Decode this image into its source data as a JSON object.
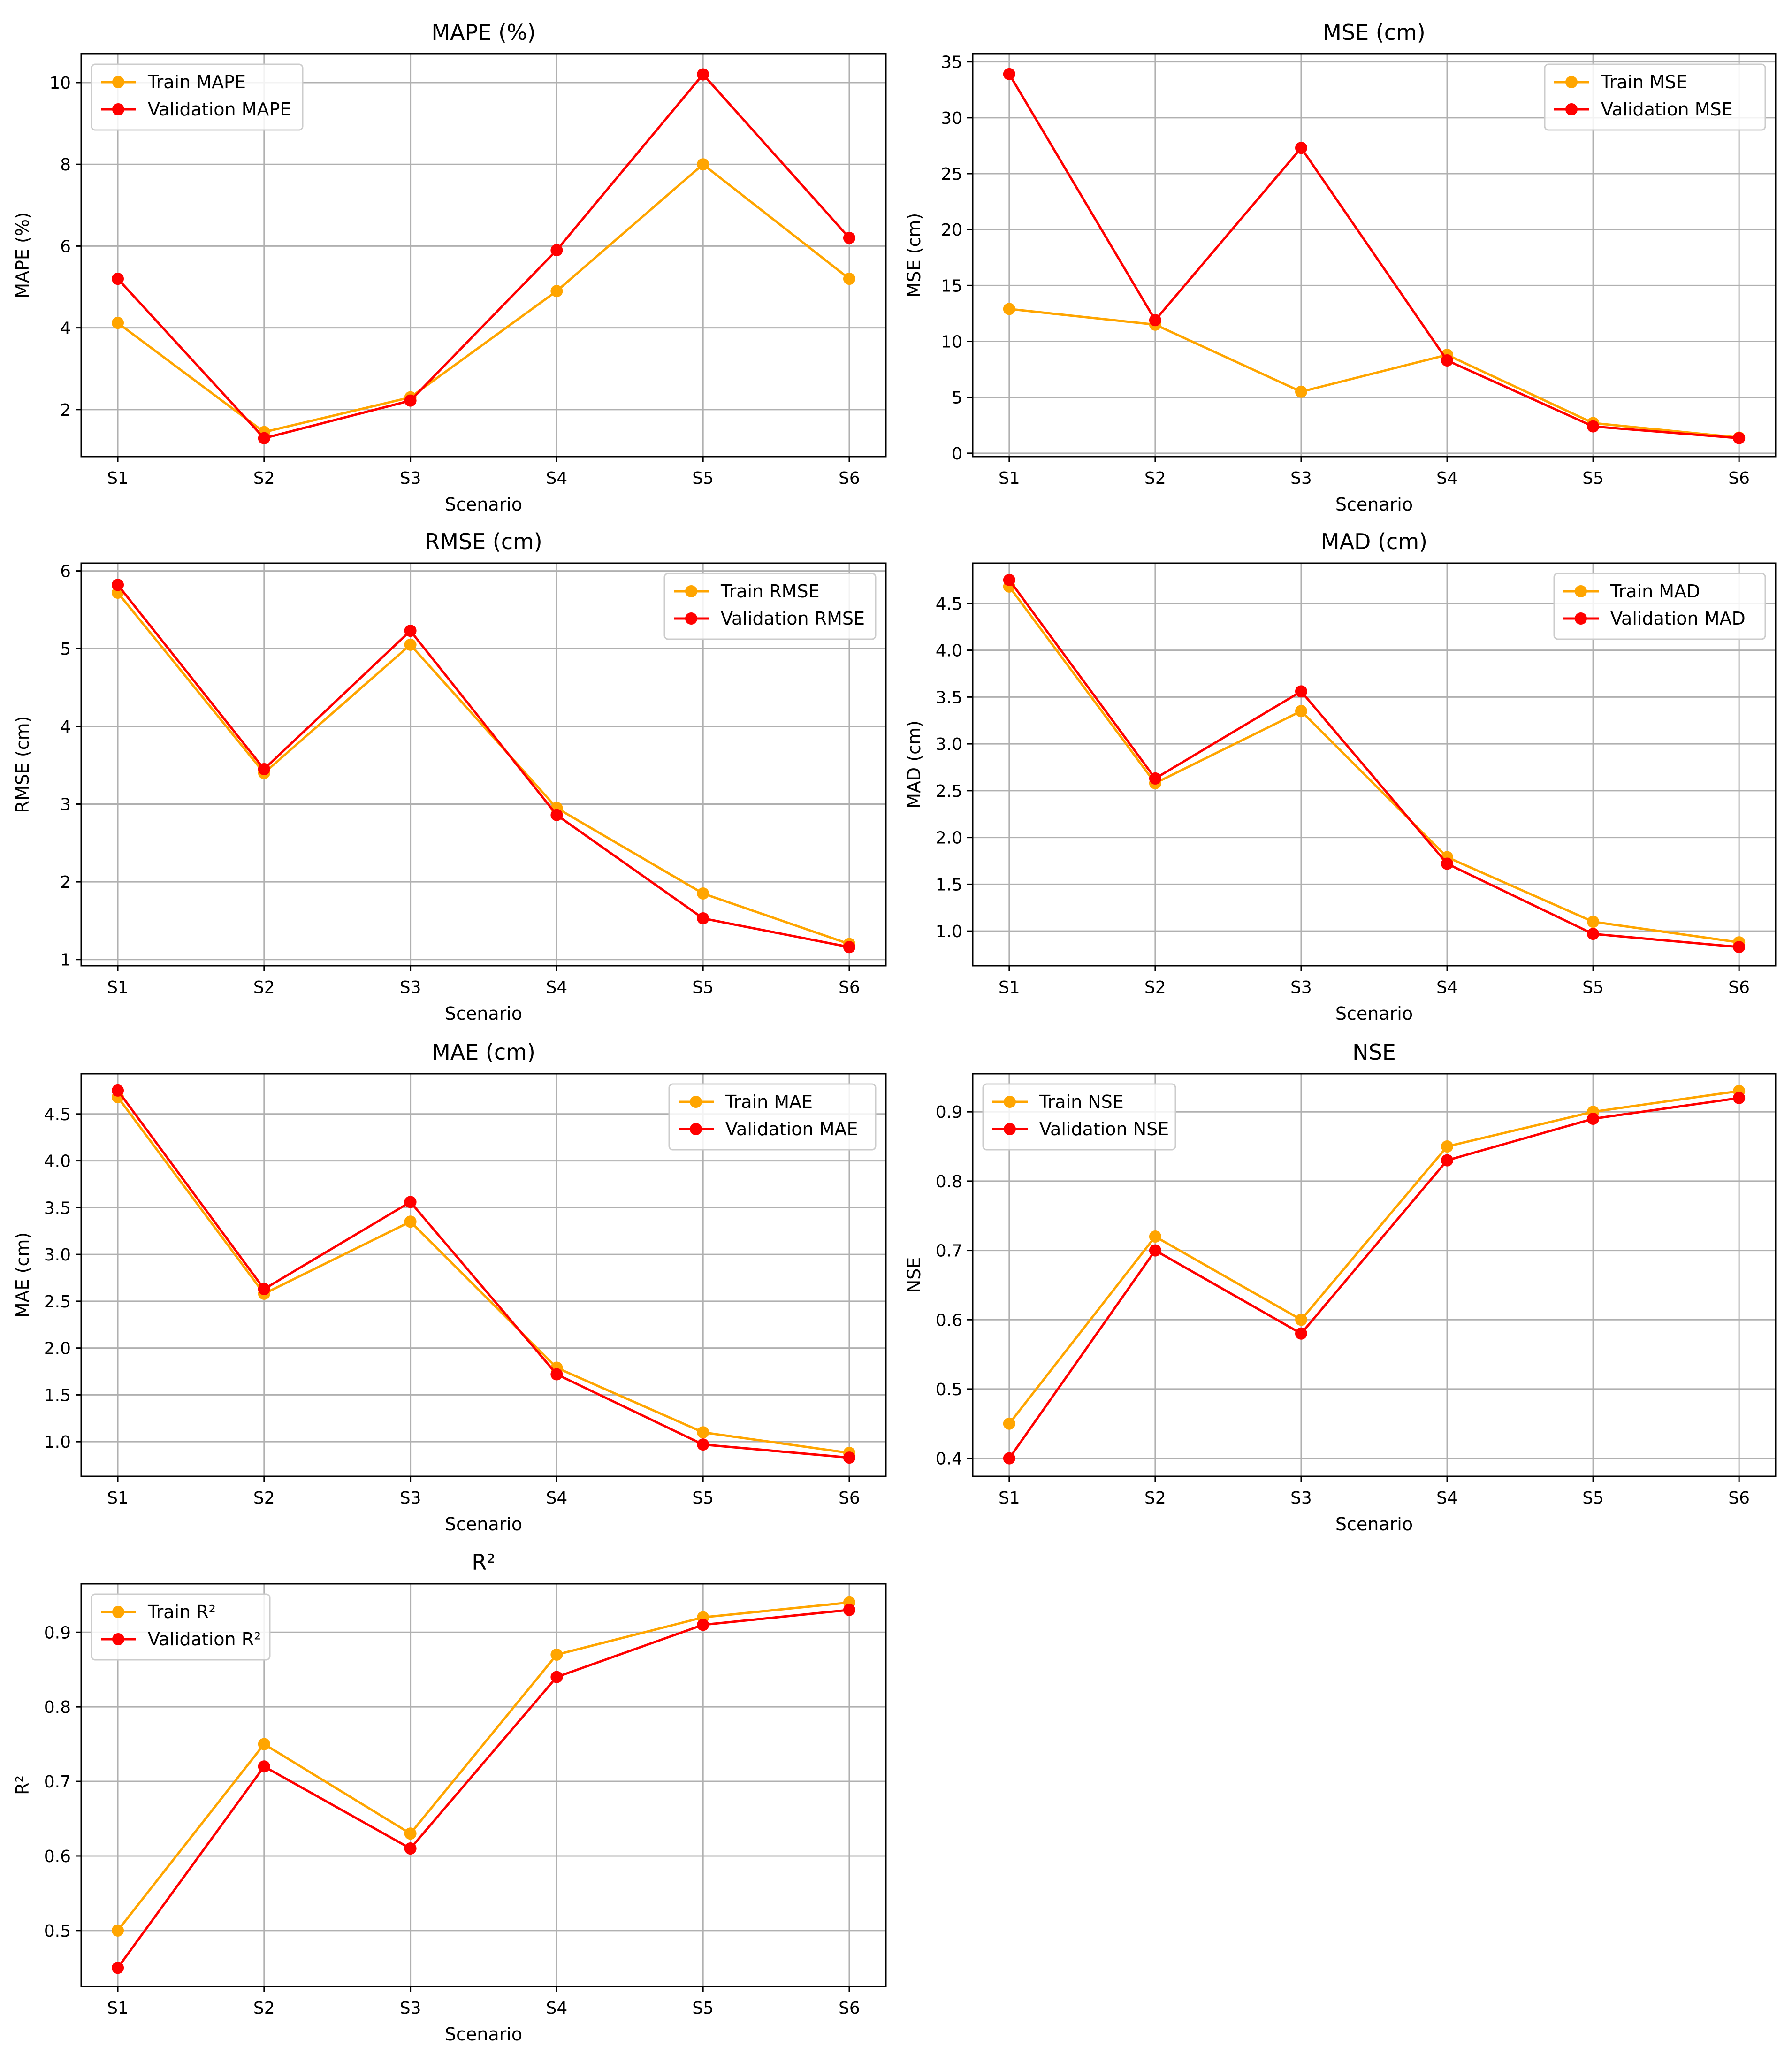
{
  "figure": {
    "background": "#ffffff"
  },
  "colors": {
    "train": "#FFA500",
    "validation": "#FF0000",
    "grid": "#b0b0b0",
    "axis": "#000000",
    "legend_border": "#cccccc"
  },
  "chart_data": [
    {
      "type": "line",
      "title": "MAPE (%)",
      "xlabel": "Scenario",
      "ylabel": "MAPE (%)",
      "categories": [
        "S1",
        "S2",
        "S3",
        "S4",
        "S5",
        "S6"
      ],
      "ylim": [
        0.85,
        10.7
      ],
      "yticks": [
        2,
        4,
        6,
        8,
        10
      ],
      "ytick_labels": [
        "2",
        "4",
        "6",
        "8",
        "10"
      ],
      "grid": true,
      "legend": "upper-left",
      "series": [
        {
          "name": "Train MAPE",
          "color": "#FFA500",
          "values": [
            4.12,
            1.45,
            2.3,
            4.9,
            8.0,
            5.2
          ]
        },
        {
          "name": "Validation MAPE",
          "color": "#FF0000",
          "values": [
            5.2,
            1.3,
            2.22,
            5.9,
            10.2,
            6.2
          ]
        }
      ]
    },
    {
      "type": "line",
      "title": "MSE (cm)",
      "xlabel": "Scenario",
      "ylabel": "MSE (cm)",
      "categories": [
        "S1",
        "S2",
        "S3",
        "S4",
        "S5",
        "S6"
      ],
      "ylim": [
        -0.3,
        35.7
      ],
      "yticks": [
        0,
        5,
        10,
        15,
        20,
        25,
        30,
        35
      ],
      "ytick_labels": [
        "0",
        "5",
        "10",
        "15",
        "20",
        "25",
        "30",
        "35"
      ],
      "grid": true,
      "legend": "upper-right",
      "series": [
        {
          "name": "Train MSE",
          "color": "#FFA500",
          "values": [
            12.9,
            11.5,
            5.5,
            8.8,
            2.7,
            1.4
          ]
        },
        {
          "name": "Validation MSE",
          "color": "#FF0000",
          "values": [
            33.9,
            11.9,
            27.3,
            8.3,
            2.4,
            1.35
          ]
        }
      ]
    },
    {
      "type": "line",
      "title": "RMSE (cm)",
      "xlabel": "Scenario",
      "ylabel": "RMSE (cm)",
      "categories": [
        "S1",
        "S2",
        "S3",
        "S4",
        "S5",
        "S6"
      ],
      "ylim": [
        0.92,
        6.1
      ],
      "yticks": [
        1,
        2,
        3,
        4,
        5,
        6
      ],
      "ytick_labels": [
        "1",
        "2",
        "3",
        "4",
        "5",
        "6"
      ],
      "grid": true,
      "legend": "upper-right",
      "series": [
        {
          "name": "Train RMSE",
          "color": "#FFA500",
          "values": [
            5.72,
            3.4,
            5.05,
            2.95,
            1.85,
            1.2
          ]
        },
        {
          "name": "Validation RMSE",
          "color": "#FF0000",
          "values": [
            5.82,
            3.45,
            5.23,
            2.86,
            1.53,
            1.16
          ]
        }
      ]
    },
    {
      "type": "line",
      "title": "MAD (cm)",
      "xlabel": "Scenario",
      "ylabel": "MAD (cm)",
      "categories": [
        "S1",
        "S2",
        "S3",
        "S4",
        "S5",
        "S6"
      ],
      "ylim": [
        0.63,
        4.93
      ],
      "yticks": [
        1.0,
        1.5,
        2.0,
        2.5,
        3.0,
        3.5,
        4.0,
        4.5
      ],
      "ytick_labels": [
        "1.0",
        "1.5",
        "2.0",
        "2.5",
        "3.0",
        "3.5",
        "4.0",
        "4.5"
      ],
      "grid": true,
      "legend": "upper-right",
      "series": [
        {
          "name": "Train MAD",
          "color": "#FFA500",
          "values": [
            4.68,
            2.58,
            3.35,
            1.79,
            1.1,
            0.88
          ]
        },
        {
          "name": "Validation MAD",
          "color": "#FF0000",
          "values": [
            4.75,
            2.63,
            3.56,
            1.72,
            0.97,
            0.83
          ]
        }
      ]
    },
    {
      "type": "line",
      "title": "MAE (cm)",
      "xlabel": "Scenario",
      "ylabel": "MAE (cm)",
      "categories": [
        "S1",
        "S2",
        "S3",
        "S4",
        "S5",
        "S6"
      ],
      "ylim": [
        0.63,
        4.93
      ],
      "yticks": [
        1.0,
        1.5,
        2.0,
        2.5,
        3.0,
        3.5,
        4.0,
        4.5
      ],
      "ytick_labels": [
        "1.0",
        "1.5",
        "2.0",
        "2.5",
        "3.0",
        "3.5",
        "4.0",
        "4.5"
      ],
      "grid": true,
      "legend": "upper-right",
      "series": [
        {
          "name": "Train MAE",
          "color": "#FFA500",
          "values": [
            4.68,
            2.58,
            3.35,
            1.79,
            1.1,
            0.88
          ]
        },
        {
          "name": "Validation MAE",
          "color": "#FF0000",
          "values": [
            4.75,
            2.63,
            3.56,
            1.72,
            0.97,
            0.83
          ]
        }
      ]
    },
    {
      "type": "line",
      "title": "NSE",
      "xlabel": "Scenario",
      "ylabel": "NSE",
      "categories": [
        "S1",
        "S2",
        "S3",
        "S4",
        "S5",
        "S6"
      ],
      "ylim": [
        0.374,
        0.955
      ],
      "yticks": [
        0.4,
        0.5,
        0.6,
        0.7,
        0.8,
        0.9
      ],
      "ytick_labels": [
        "0.4",
        "0.5",
        "0.6",
        "0.7",
        "0.8",
        "0.9"
      ],
      "grid": true,
      "legend": "upper-left",
      "series": [
        {
          "name": "Train NSE",
          "color": "#FFA500",
          "values": [
            0.45,
            0.72,
            0.6,
            0.85,
            0.9,
            0.93
          ]
        },
        {
          "name": "Validation NSE",
          "color": "#FF0000",
          "values": [
            0.4,
            0.7,
            0.58,
            0.83,
            0.89,
            0.92
          ]
        }
      ]
    },
    {
      "type": "line",
      "title": "R²",
      "xlabel": "Scenario",
      "ylabel": "R²",
      "categories": [
        "S1",
        "S2",
        "S3",
        "S4",
        "S5",
        "S6"
      ],
      "ylim": [
        0.425,
        0.965
      ],
      "yticks": [
        0.5,
        0.6,
        0.7,
        0.8,
        0.9
      ],
      "ytick_labels": [
        "0.5",
        "0.6",
        "0.7",
        "0.8",
        "0.9"
      ],
      "grid": true,
      "legend": "upper-left",
      "series": [
        {
          "name": "Train R²",
          "color": "#FFA500",
          "values": [
            0.5,
            0.75,
            0.63,
            0.87,
            0.92,
            0.94
          ]
        },
        {
          "name": "Validation R²",
          "color": "#FF0000",
          "values": [
            0.45,
            0.72,
            0.61,
            0.84,
            0.91,
            0.93
          ]
        }
      ]
    }
  ]
}
